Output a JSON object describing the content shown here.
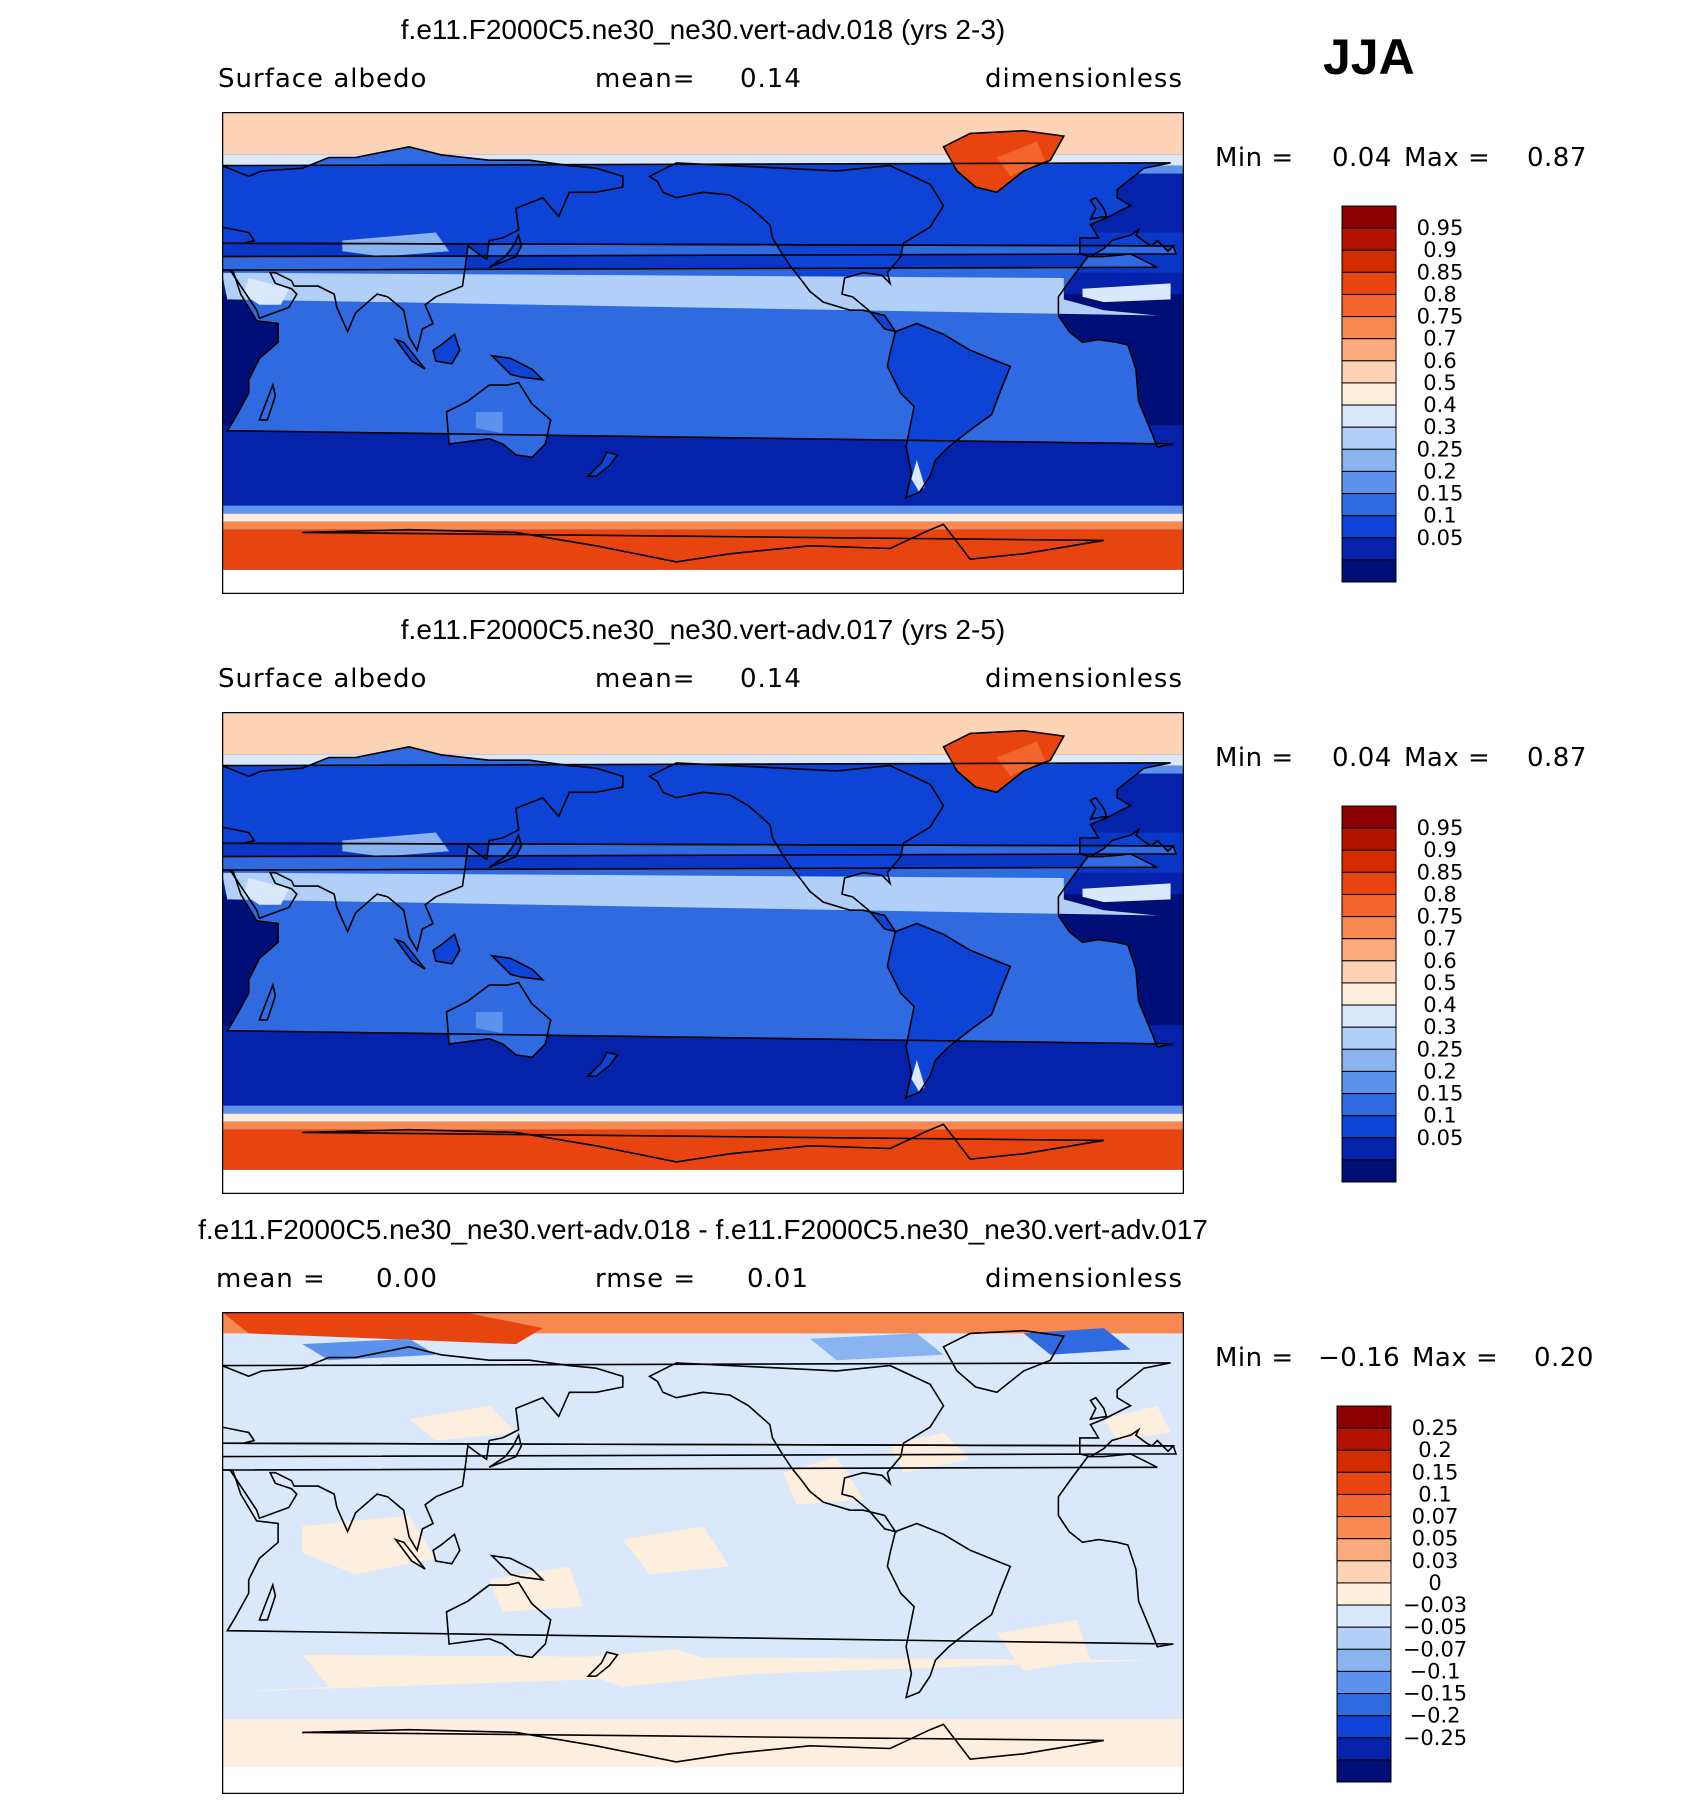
{
  "season": "JJA",
  "panels": [
    {
      "title": "f.e11.F2000C5.ne30_ne30.vert-adv.018 (yrs 2-3)",
      "left_label": "Surface  albedo",
      "mid_label": "mean=",
      "mid_value": "0.14",
      "right_label": "dimensionless",
      "min_label": "Min =",
      "min_value": "0.04",
      "max_label": "Max =",
      "max_value": "0.87"
    },
    {
      "title": "f.e11.F2000C5.ne30_ne30.vert-adv.017 (yrs 2-5)",
      "left_label": "Surface  albedo",
      "mid_label": "mean=",
      "mid_value": "0.14",
      "right_label": "dimensionless",
      "min_label": "Min =",
      "min_value": "0.04",
      "max_label": "Max =",
      "max_value": "0.87"
    },
    {
      "title": "f.e11.F2000C5.ne30_ne30.vert-adv.018 - f.e11.F2000C5.ne30_ne30.vert-adv.017",
      "left_label": "mean =",
      "left_value": "0.00",
      "mid_label": "rmse =",
      "mid_value": "0.01",
      "right_label": "dimensionless",
      "min_label": "Min =",
      "min_value": "−0.16",
      "max_label": "Max =",
      "max_value": "0.20"
    }
  ],
  "chart_data": [
    {
      "type": "heatmap",
      "title": "f.e11.F2000C5.ne30_ne30.vert-adv.018 (yrs 2-3)",
      "variable": "Surface albedo",
      "units": "dimensionless",
      "mean": 0.14,
      "min": 0.04,
      "max": 0.87,
      "levels": [
        0.95,
        0.9,
        0.85,
        0.8,
        0.75,
        0.7,
        0.6,
        0.5,
        0.4,
        0.3,
        0.25,
        0.2,
        0.15,
        0.1,
        0.05
      ],
      "colors": [
        "#8b0000",
        "#b31200",
        "#d42a00",
        "#e8440f",
        "#f2652c",
        "#f7884f",
        "#fbaa7e",
        "#fdd3b6",
        "#fdeedd",
        "#d9e8fb",
        "#b2d0f7",
        "#8ab4f0",
        "#5c92eb",
        "#2f6ae0",
        "#0d44d6",
        "#0422aa",
        "#000f78"
      ],
      "colors_note": "colour bands listed top (highest) to bottom (lowest)"
    },
    {
      "type": "heatmap",
      "title": "f.e11.F2000C5.ne30_ne30.vert-adv.017 (yrs 2-5)",
      "variable": "Surface albedo",
      "units": "dimensionless",
      "mean": 0.14,
      "min": 0.04,
      "max": 0.87,
      "levels": [
        0.95,
        0.9,
        0.85,
        0.8,
        0.75,
        0.7,
        0.6,
        0.5,
        0.4,
        0.3,
        0.25,
        0.2,
        0.15,
        0.1,
        0.05
      ],
      "colors": [
        "#8b0000",
        "#b31200",
        "#d42a00",
        "#e8440f",
        "#f2652c",
        "#f7884f",
        "#fbaa7e",
        "#fdd3b6",
        "#fdeedd",
        "#d9e8fb",
        "#b2d0f7",
        "#8ab4f0",
        "#5c92eb",
        "#2f6ae0",
        "#0d44d6",
        "#0422aa",
        "#000f78"
      ]
    },
    {
      "type": "heatmap",
      "title": "f.e11.F2000C5.ne30_ne30.vert-adv.018 - f.e11.F2000C5.ne30_ne30.vert-adv.017",
      "units": "dimensionless",
      "mean": 0.0,
      "rmse": 0.01,
      "min": -0.16,
      "max": 0.2,
      "levels": [
        0.25,
        0.2,
        0.15,
        0.1,
        0.07,
        0.05,
        0.03,
        0,
        -0.03,
        -0.05,
        -0.07,
        -0.1,
        -0.15,
        -0.2,
        -0.25
      ],
      "level_labels": [
        "0.25",
        "0.2",
        "0.15",
        "0.1",
        "0.07",
        "0.05",
        "0.03",
        "0",
        "−0.03",
        "−0.05",
        "−0.07",
        "−0.1",
        "−0.15",
        "−0.2",
        "−0.25"
      ],
      "colors": [
        "#8b0000",
        "#b31200",
        "#d42a00",
        "#e8440f",
        "#f2652c",
        "#f7884f",
        "#fbaa7e",
        "#fdd3b6",
        "#fdeedd",
        "#d9e8fb",
        "#b2d0f7",
        "#8ab4f0",
        "#5c92eb",
        "#2f6ae0",
        "#0d44d6",
        "#0422aa",
        "#000f78"
      ]
    }
  ]
}
